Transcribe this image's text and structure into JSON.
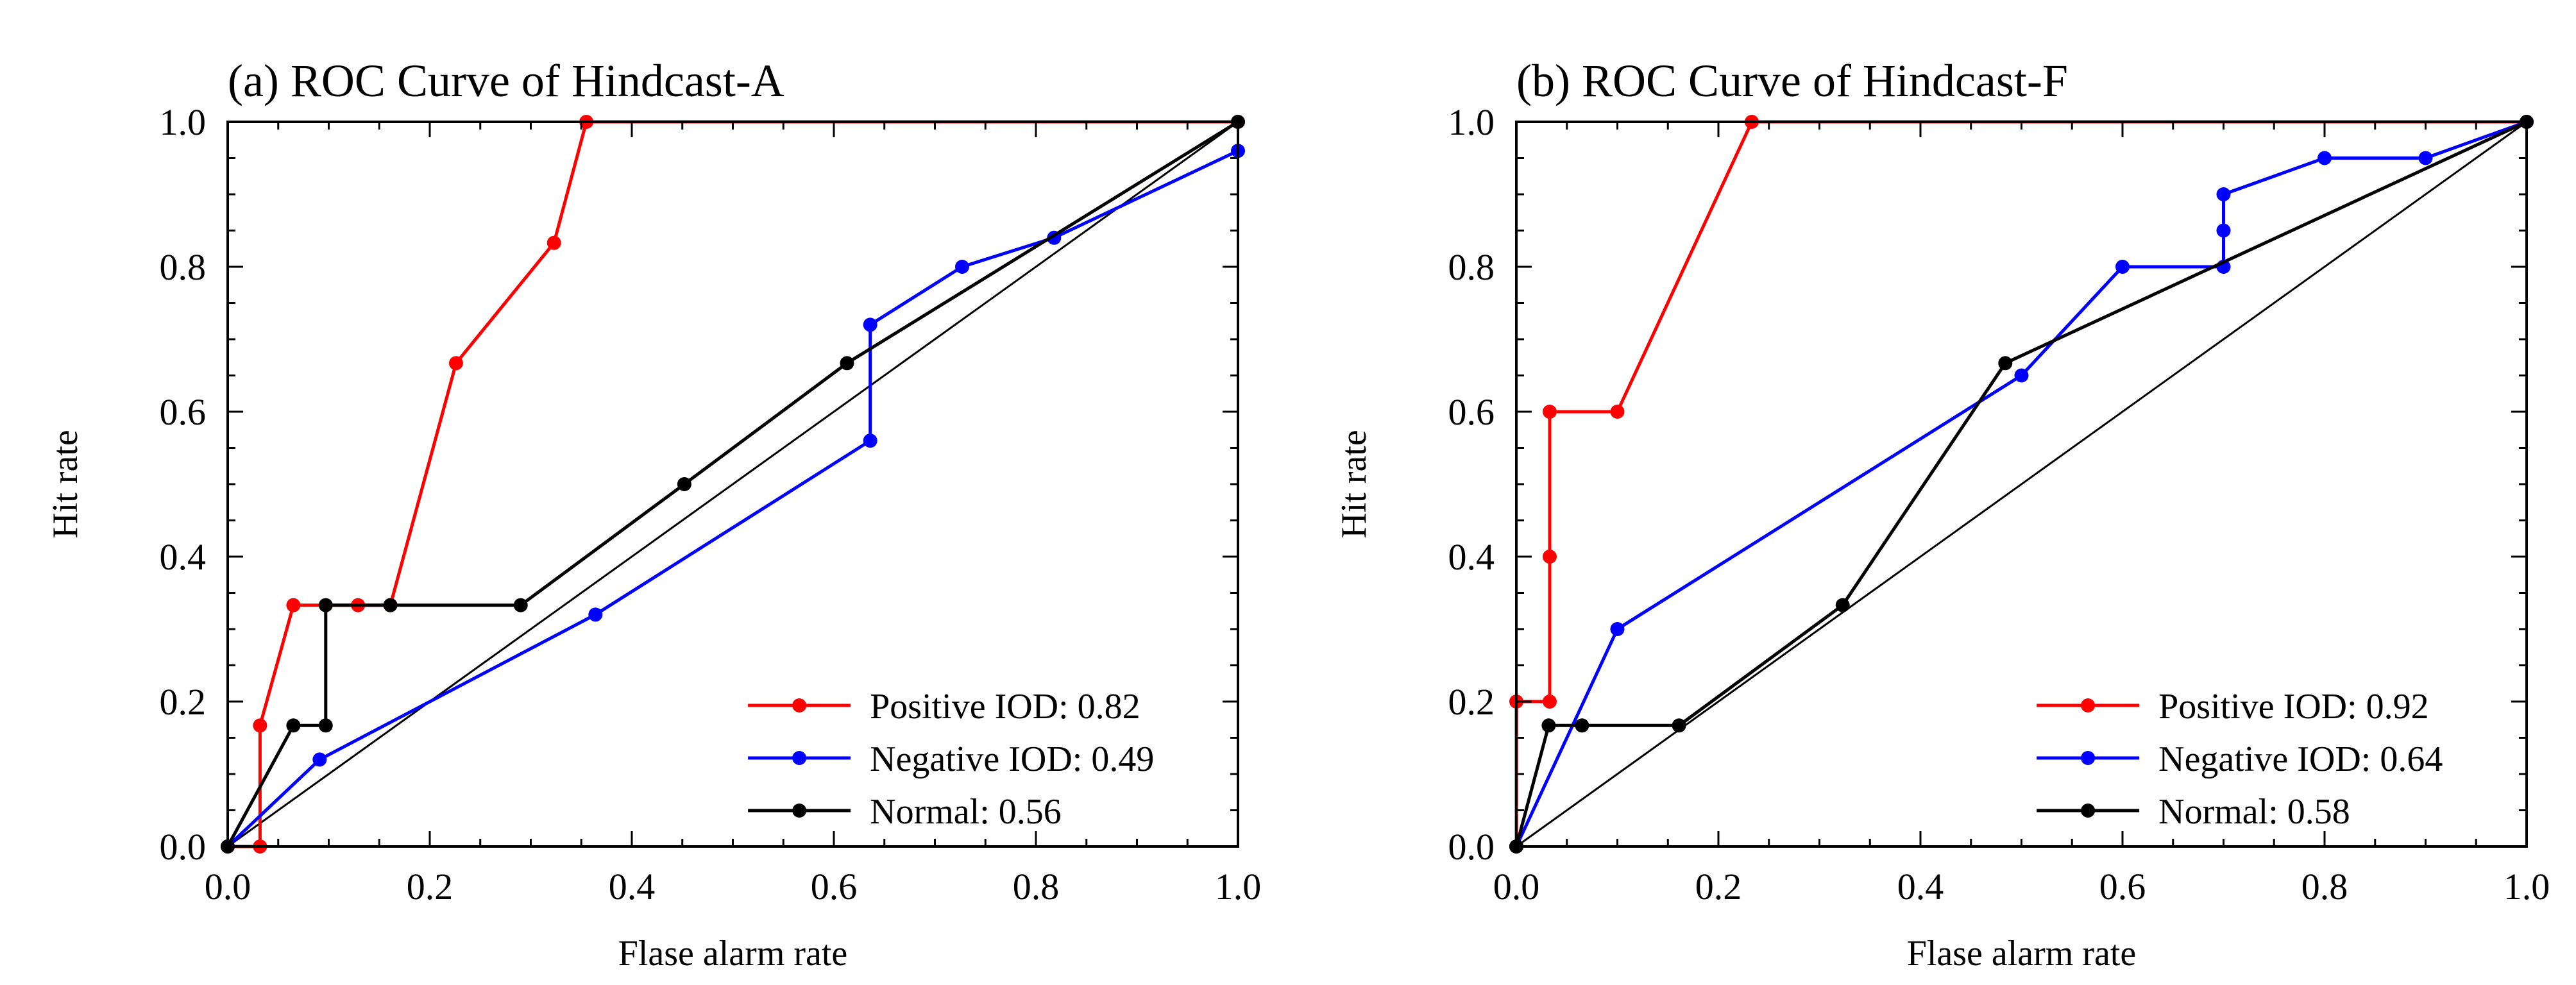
{
  "chart_data": [
    {
      "type": "line",
      "title": "(a) ROC Curve of Hindcast-A",
      "xlabel": "Flase alarm rate",
      "ylabel": "Hit rate",
      "xlim": [
        0,
        1
      ],
      "ylim": [
        0,
        1
      ],
      "xticks": [
        "0.0",
        "0.2",
        "0.4",
        "0.6",
        "0.8",
        "1.0"
      ],
      "yticks": [
        "0.0",
        "0.2",
        "0.4",
        "0.6",
        "0.8",
        "1.0"
      ],
      "grid": false,
      "legend_position": "bottom-right",
      "diagonal_reference": true,
      "series": [
        {
          "name": "Positive IOD: 0.82",
          "color": "#ff0000",
          "x": [
            0,
            0.032,
            0.032,
            0.065,
            0.129,
            0.161,
            0.226,
            0.323,
            0.355,
            1.0
          ],
          "y": [
            0,
            0.0,
            0.167,
            0.333,
            0.333,
            0.333,
            0.667,
            0.833,
            1.0,
            1.0
          ]
        },
        {
          "name": "Negative IOD: 0.49",
          "color": "#0000ff",
          "x": [
            0,
            0.091,
            0.364,
            0.636,
            0.636,
            0.727,
            0.818,
            1.0
          ],
          "y": [
            0,
            0.12,
            0.32,
            0.56,
            0.72,
            0.8,
            0.84,
            0.96
          ]
        },
        {
          "name": "Normal: 0.56",
          "color": "#000000",
          "x": [
            0,
            0.065,
            0.097,
            0.097,
            0.161,
            0.29,
            0.452,
            0.613,
            1.0
          ],
          "y": [
            0,
            0.167,
            0.167,
            0.333,
            0.333,
            0.333,
            0.5,
            0.667,
            1.0
          ]
        }
      ]
    },
    {
      "type": "line",
      "title": "(b) ROC Curve of Hindcast-F",
      "xlabel": "Flase alarm rate",
      "ylabel": "Hit rate",
      "xlim": [
        0,
        1
      ],
      "ylim": [
        0,
        1
      ],
      "xticks": [
        "0.0",
        "0.2",
        "0.4",
        "0.6",
        "0.8",
        "1.0"
      ],
      "yticks": [
        "0.0",
        "0.2",
        "0.4",
        "0.6",
        "0.8",
        "1.0"
      ],
      "grid": false,
      "legend_position": "bottom-right",
      "diagonal_reference": true,
      "series": [
        {
          "name": "Positive IOD: 0.92",
          "color": "#ff0000",
          "x": [
            0,
            0,
            0.033,
            0.033,
            0.033,
            0.1,
            0.233,
            1.0
          ],
          "y": [
            0,
            0.2,
            0.2,
            0.4,
            0.6,
            0.6,
            1.0,
            1.0
          ]
        },
        {
          "name": "Negative IOD: 0.64",
          "color": "#0000ff",
          "x": [
            0,
            0.1,
            0.5,
            0.6,
            0.7,
            0.7,
            0.7,
            0.8,
            0.9,
            1.0
          ],
          "y": [
            0,
            0.3,
            0.65,
            0.8,
            0.8,
            0.85,
            0.9,
            0.95,
            0.95,
            1.0
          ]
        },
        {
          "name": "Normal: 0.58",
          "color": "#000000",
          "x": [
            0,
            0.032,
            0.065,
            0.161,
            0.323,
            0.484,
            1.0
          ],
          "y": [
            0,
            0.167,
            0.167,
            0.167,
            0.333,
            0.667,
            1.0
          ]
        }
      ]
    }
  ]
}
